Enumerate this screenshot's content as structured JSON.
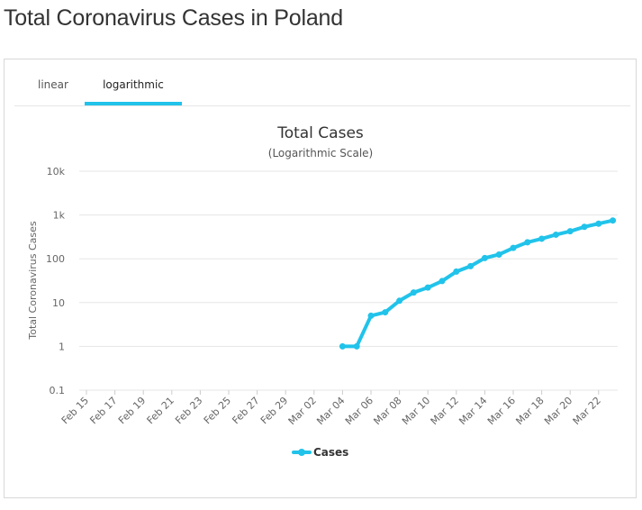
{
  "page": {
    "title": "Total Coronavirus Cases in Poland"
  },
  "tabs": [
    {
      "label": "linear",
      "active": false
    },
    {
      "label": "logarithmic",
      "active": true
    }
  ],
  "colors": {
    "series": "#21c3ea",
    "grid": "#e6e6e6",
    "text": "#333333"
  },
  "chart_data": {
    "type": "line",
    "title": "Total Cases",
    "subtitle": "(Logarithmic Scale)",
    "ylabel": "Total Coronavirus Cases",
    "xlabel": "",
    "yscale": "log",
    "ylim": [
      0.1,
      10000
    ],
    "y_ticks": [
      "0.1",
      "1",
      "10",
      "100",
      "1k",
      "10k"
    ],
    "x_ticks": [
      "Feb 15",
      "Feb 17",
      "Feb 19",
      "Feb 21",
      "Feb 23",
      "Feb 25",
      "Feb 27",
      "Feb 29",
      "Mar 02",
      "Mar 04",
      "Mar 06",
      "Mar 08",
      "Mar 10",
      "Mar 12",
      "Mar 14",
      "Mar 16",
      "Mar 18",
      "Mar 20",
      "Mar 22"
    ],
    "x": [
      "Feb 15",
      "Feb 16",
      "Feb 17",
      "Feb 18",
      "Feb 19",
      "Feb 20",
      "Feb 21",
      "Feb 22",
      "Feb 23",
      "Feb 24",
      "Feb 25",
      "Feb 26",
      "Feb 27",
      "Feb 28",
      "Feb 29",
      "Mar 01",
      "Mar 02",
      "Mar 03",
      "Mar 04",
      "Mar 05",
      "Mar 06",
      "Mar 07",
      "Mar 08",
      "Mar 09",
      "Mar 10",
      "Mar 11",
      "Mar 12",
      "Mar 13",
      "Mar 14",
      "Mar 15",
      "Mar 16",
      "Mar 17",
      "Mar 18",
      "Mar 19",
      "Mar 20",
      "Mar 21",
      "Mar 22",
      "Mar 23",
      "Mar 24"
    ],
    "series": [
      {
        "name": "Cases",
        "values": [
          null,
          null,
          null,
          null,
          null,
          null,
          null,
          null,
          null,
          null,
          null,
          null,
          null,
          null,
          null,
          null,
          null,
          null,
          1,
          1,
          5,
          6,
          11,
          17,
          22,
          31,
          51,
          68,
          104,
          125,
          177,
          238,
          287,
          355,
          425,
          536,
          634,
          749,
          null
        ]
      }
    ],
    "legend": "bottom-center",
    "grid": true
  }
}
